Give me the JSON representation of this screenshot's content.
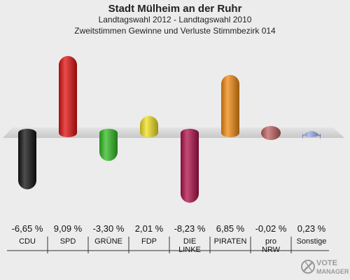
{
  "header": {
    "title": "Stadt Mülheim an der Ruhr",
    "subtitle1": "Landtagswahl 2012 - Landtagswahl 2010",
    "subtitle2": "Zweitstimmen Gewinne und Verluste Stimmbezirk 014"
  },
  "chart_data": {
    "type": "bar",
    "title": "Stadt Mülheim an der Ruhr",
    "subtitle": [
      "Landtagswahl 2012 - Landtagswahl 2010",
      "Zweitstimmen Gewinne und Verluste Stimmbezirk 014"
    ],
    "categories": [
      "CDU",
      "SPD",
      "GRÜNE",
      "FDP",
      "DIE LINKE",
      "PIRATEN",
      "pro NRW",
      "Sonstige"
    ],
    "category_lines": [
      [
        "CDU"
      ],
      [
        "SPD"
      ],
      [
        "GRÜNE"
      ],
      [
        "FDP"
      ],
      [
        "DIE",
        "LINKE"
      ],
      [
        "PIRATEN"
      ],
      [
        "pro",
        "NRW"
      ],
      [
        "Sonstige"
      ]
    ],
    "values": [
      -6.65,
      9.09,
      -3.3,
      2.01,
      -8.23,
      6.85,
      -0.02,
      0.23
    ],
    "value_labels": [
      "-6,65 %",
      "9,09 %",
      "-3,30 %",
      "2,01 %",
      "-8,23 %",
      "6,85 %",
      "-0,02 %",
      "0,23 %"
    ],
    "colors": [
      "#111111",
      "#e01010",
      "#33bb22",
      "#f2e020",
      "#b0104a",
      "#f08a10",
      "#c06060",
      "#9aaae8"
    ],
    "ylim": [
      -10,
      10
    ],
    "grid": false,
    "xlabel": "",
    "ylabel": ""
  },
  "logo": {
    "text": "VOTE MANAGER"
  }
}
